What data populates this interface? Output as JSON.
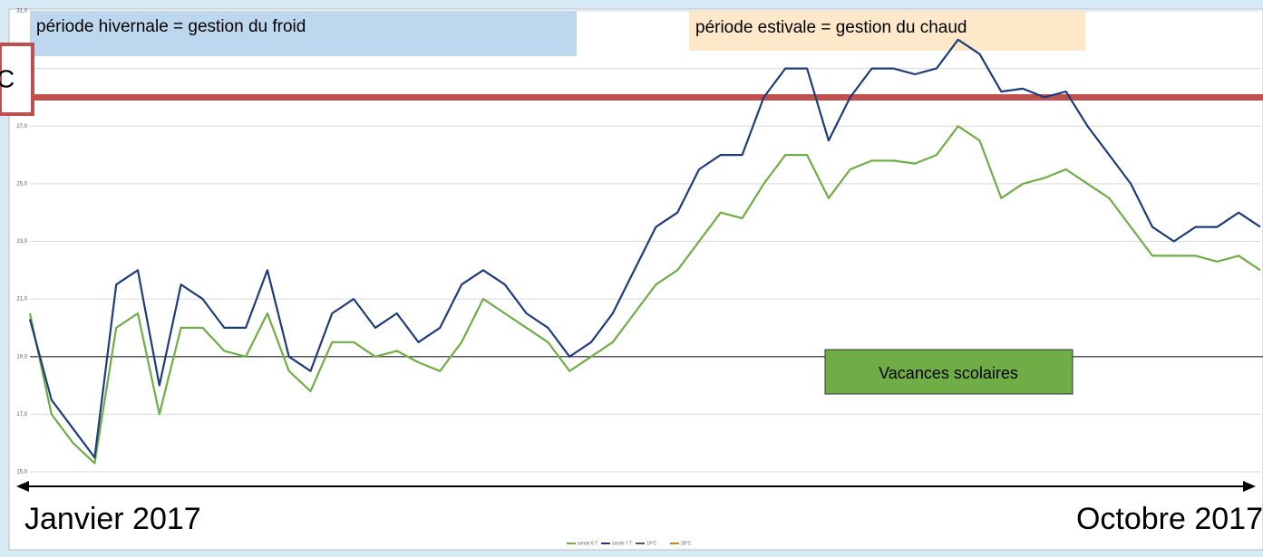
{
  "chart_data": {
    "type": "line",
    "ylim": [
      15,
      31
    ],
    "yticks": [
      {
        "value": 15,
        "label": "15,0"
      },
      {
        "value": 17,
        "label": "17,0"
      },
      {
        "value": 19,
        "label": "19,0"
      },
      {
        "value": 21,
        "label": "21,0"
      },
      {
        "value": 23,
        "label": "23,0"
      },
      {
        "value": 25,
        "label": "25,0"
      },
      {
        "value": 27,
        "label": "27,0"
      },
      {
        "value": 29,
        "label": "29,0"
      },
      {
        "value": 31,
        "label": "31,0"
      }
    ],
    "grid": true,
    "series": [
      {
        "name": "sonde 6 T",
        "color": "#70ad47",
        "values": [
          20.5,
          17,
          16,
          15.3,
          20,
          20.5,
          17,
          20,
          20,
          19.2,
          19,
          20.5,
          18.5,
          17.8,
          19.5,
          19.5,
          19,
          19.2,
          18.8,
          18.5,
          19.5,
          21,
          20.5,
          20,
          19.5,
          18.5,
          19,
          19.5,
          20.5,
          21.5,
          22,
          23,
          24,
          23.8,
          25,
          26,
          26,
          24.5,
          25.5,
          25.8,
          25.8,
          25.7,
          26,
          27,
          26.5,
          24.5,
          25,
          25.2,
          25.5,
          25,
          24.5,
          23.5,
          22.5,
          22.5,
          22.5,
          22.3,
          22.5,
          22
        ]
      },
      {
        "name": "sonde 7 T",
        "color": "#1f3c7a",
        "values": [
          20.3,
          17.5,
          16.5,
          15.5,
          21.5,
          22,
          18,
          21.5,
          21,
          20,
          20,
          22,
          19,
          18.5,
          20.5,
          21,
          20,
          20.5,
          19.5,
          20,
          21.5,
          22,
          21.5,
          20.5,
          20,
          19,
          19.5,
          20.5,
          22,
          23.5,
          24,
          25.5,
          26,
          26,
          28,
          29,
          29,
          26.5,
          28,
          29,
          29,
          28.8,
          29,
          30,
          29.5,
          28.2,
          28.3,
          28,
          28.2,
          27,
          26,
          25,
          23.5,
          23,
          23.5,
          23.5,
          24,
          23.5
        ]
      }
    ],
    "reference_lines": [
      {
        "name": "19°C",
        "value": 19,
        "color": "#595959"
      },
      {
        "name": "28°C",
        "value": 28,
        "color": "#c0504d"
      }
    ],
    "annotations": {
      "winter": "période hivernale = gestion du froid",
      "summer": "période estivale = gestion du chaud",
      "holidays": "Vacances scolaires",
      "start": "Janvier 2017",
      "end": "Octobre 2017",
      "cut": "C"
    }
  }
}
